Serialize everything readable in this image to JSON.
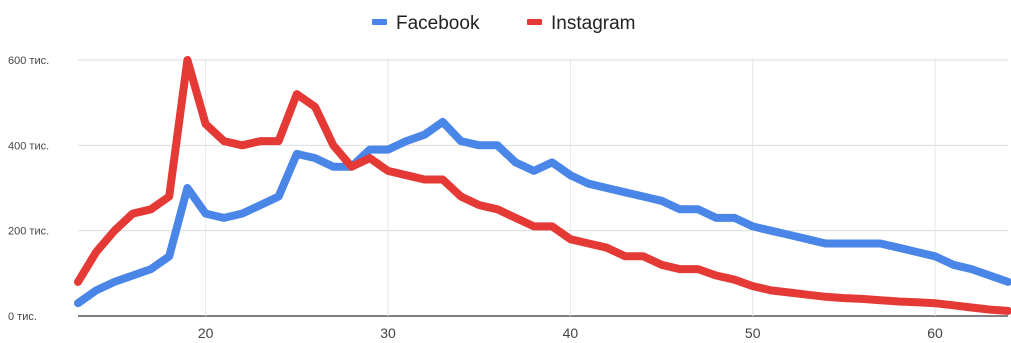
{
  "chart_data": {
    "type": "line",
    "title": "",
    "xlabel": "",
    "ylabel": "",
    "xlim": [
      13,
      64
    ],
    "ylim": [
      0,
      600000
    ],
    "grid": true,
    "legend_position": "top-center",
    "x_ticks": [
      {
        "value": 20,
        "label": "20"
      },
      {
        "value": 30,
        "label": "30"
      },
      {
        "value": 40,
        "label": "40"
      },
      {
        "value": 50,
        "label": "50"
      },
      {
        "value": 60,
        "label": "60"
      }
    ],
    "y_ticks": [
      {
        "value": 0,
        "label": "0 тис."
      },
      {
        "value": 200000,
        "label": "200 тис."
      },
      {
        "value": 400000,
        "label": "400 тис."
      },
      {
        "value": 600000,
        "label": "600 тис."
      }
    ],
    "series": [
      {
        "name": "Facebook",
        "color": "#4a86e8",
        "x": [
          13,
          14,
          15,
          16,
          17,
          18,
          19,
          20,
          21,
          22,
          23,
          24,
          25,
          26,
          27,
          28,
          29,
          30,
          31,
          32,
          33,
          34,
          35,
          36,
          37,
          38,
          39,
          40,
          41,
          42,
          43,
          44,
          45,
          46,
          47,
          48,
          49,
          50,
          51,
          52,
          53,
          54,
          55,
          56,
          57,
          58,
          59,
          60,
          61,
          62,
          63,
          64
        ],
        "values": [
          30000,
          60000,
          80000,
          95000,
          110000,
          140000,
          300000,
          240000,
          230000,
          240000,
          260000,
          280000,
          380000,
          370000,
          350000,
          350000,
          390000,
          390000,
          410000,
          425000,
          455000,
          410000,
          400000,
          400000,
          360000,
          340000,
          360000,
          330000,
          310000,
          300000,
          290000,
          280000,
          270000,
          250000,
          250000,
          230000,
          230000,
          210000,
          200000,
          190000,
          180000,
          170000,
          170000,
          170000,
          170000,
          160000,
          150000,
          140000,
          120000,
          110000,
          95000,
          80000
        ]
      },
      {
        "name": "Instagram",
        "color": "#e53935",
        "x": [
          13,
          14,
          15,
          16,
          17,
          18,
          19,
          20,
          21,
          22,
          23,
          24,
          25,
          26,
          27,
          28,
          29,
          30,
          31,
          32,
          33,
          34,
          35,
          36,
          37,
          38,
          39,
          40,
          41,
          42,
          43,
          44,
          45,
          46,
          47,
          48,
          49,
          50,
          51,
          52,
          53,
          54,
          55,
          56,
          57,
          58,
          59,
          60,
          61,
          62,
          63,
          64
        ],
        "values": [
          80000,
          150000,
          200000,
          240000,
          250000,
          280000,
          600000,
          450000,
          410000,
          400000,
          410000,
          410000,
          520000,
          490000,
          400000,
          350000,
          370000,
          340000,
          330000,
          320000,
          320000,
          280000,
          260000,
          250000,
          230000,
          210000,
          210000,
          180000,
          170000,
          160000,
          140000,
          140000,
          120000,
          110000,
          110000,
          95000,
          85000,
          70000,
          60000,
          55000,
          50000,
          45000,
          42000,
          40000,
          37000,
          34000,
          32000,
          30000,
          25000,
          20000,
          15000,
          12000
        ]
      }
    ]
  }
}
